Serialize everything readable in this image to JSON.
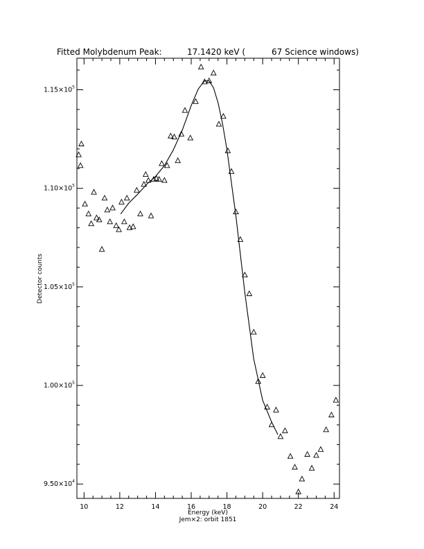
{
  "chart_data": {
    "type": "scatter",
    "title": {
      "label": "Fitted Molybdenum Peak:",
      "energy": "17.1420 keV (",
      "windows": "67 Science windows)"
    },
    "xlabel": "Energy (keV)",
    "ylabel": "Detector counts",
    "footer": "Jem×2: orbit 1851",
    "xlim": [
      9.6,
      24.3
    ],
    "ylim": [
      94270,
      116600
    ],
    "grid": false,
    "legend": "none",
    "x_ticks": [
      {
        "value": 10,
        "label": "10"
      },
      {
        "value": 12,
        "label": "12"
      },
      {
        "value": 14,
        "label": "14"
      },
      {
        "value": 16,
        "label": "16"
      },
      {
        "value": 18,
        "label": "18"
      },
      {
        "value": 20,
        "label": "20"
      },
      {
        "value": 22,
        "label": "22"
      },
      {
        "value": 24,
        "label": "24"
      }
    ],
    "y_ticks": [
      {
        "value": 95000,
        "mantissa": "9.50",
        "exp": "4"
      },
      {
        "value": 100000,
        "mantissa": "1.00",
        "exp": "5"
      },
      {
        "value": 105000,
        "mantissa": "1.05",
        "exp": "5"
      },
      {
        "value": 110000,
        "mantissa": "1.10",
        "exp": "5"
      },
      {
        "value": 115000,
        "mantissa": "1.15",
        "exp": "5"
      }
    ],
    "series": [
      {
        "marker": "triangle",
        "x": [
          9.7,
          9.8,
          9.85,
          10.05,
          10.25,
          10.4,
          10.55,
          10.7,
          10.85,
          11.0,
          11.15,
          11.3,
          11.45,
          11.6,
          11.8,
          11.95,
          12.1,
          12.25,
          12.4,
          12.55,
          12.75,
          12.95,
          13.15,
          13.35,
          13.45,
          13.6,
          13.75,
          13.9,
          14.05,
          14.2,
          14.35,
          14.5,
          14.65,
          14.85,
          15.05,
          15.25,
          15.45,
          15.65,
          15.95,
          16.25,
          16.55,
          16.75,
          17.0,
          17.25,
          17.55,
          17.8,
          18.05,
          18.25,
          18.5,
          18.75,
          19.0,
          19.25,
          19.5,
          19.75,
          20.0,
          20.25,
          20.5,
          20.75,
          21.0,
          21.25,
          21.55,
          21.8,
          22.0,
          22.2,
          22.5,
          22.75,
          23.0,
          23.25,
          23.55,
          23.85,
          24.1
        ],
        "y": [
          111700,
          111150,
          112250,
          109200,
          108700,
          108200,
          109800,
          108500,
          108400,
          106900,
          109500,
          108900,
          108300,
          109000,
          108100,
          107900,
          109300,
          108300,
          109500,
          108000,
          108050,
          109900,
          108700,
          110200,
          110700,
          110400,
          108600,
          110450,
          110500,
          110450,
          111250,
          110400,
          111150,
          112650,
          112600,
          111400,
          112750,
          113950,
          112550,
          114400,
          116150,
          115400,
          115450,
          115850,
          113250,
          113650,
          111900,
          110850,
          108800,
          107400,
          105600,
          104650,
          102700,
          100200,
          100500,
          98900,
          98000,
          98750,
          97400,
          97700,
          96400,
          95850,
          94600,
          95250,
          96500,
          95800,
          96450,
          96750,
          97750,
          98500,
          99250
        ]
      },
      {
        "marker": "line",
        "name": "fit",
        "x": [
          12.05,
          12.5,
          13.0,
          13.5,
          14.0,
          14.5,
          15.0,
          15.5,
          16.0,
          16.4,
          16.75,
          17.0,
          17.25,
          17.5,
          17.75,
          18.0,
          18.5,
          19.0,
          19.5,
          20.0,
          20.5,
          20.85
        ],
        "y": [
          108700,
          109250,
          109700,
          110200,
          110600,
          111150,
          111950,
          112950,
          114200,
          115050,
          115450,
          115450,
          115100,
          114350,
          113300,
          111950,
          108600,
          104700,
          101350,
          99250,
          98150,
          97500
        ]
      }
    ]
  }
}
